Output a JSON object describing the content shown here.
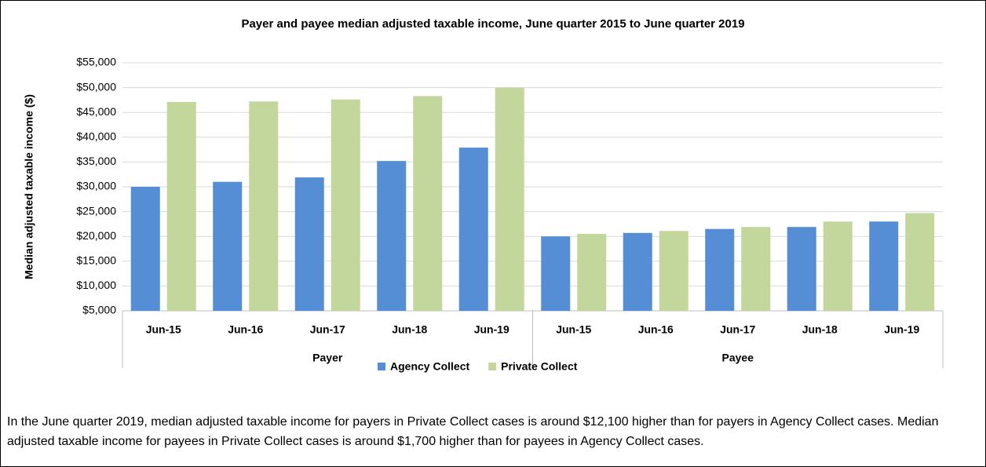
{
  "chart_data": {
    "type": "bar",
    "title": "Payer and payee median adjusted taxable income, June quarter 2015 to June quarter 2019",
    "y_label": "Median adjusted taxable income ($)",
    "groups": [
      {
        "name": "Payer",
        "categories": [
          "Jun-15",
          "Jun-16",
          "Jun-17",
          "Jun-18",
          "Jun-19"
        ]
      },
      {
        "name": "Payee",
        "categories": [
          "Jun-15",
          "Jun-16",
          "Jun-17",
          "Jun-18",
          "Jun-19"
        ]
      }
    ],
    "series": [
      {
        "name": "Agency Collect",
        "color": "#558ed5",
        "values": [
          30000,
          31000,
          31900,
          35200,
          37900,
          20000,
          20700,
          21500,
          21900,
          23000
        ]
      },
      {
        "name": "Private Collect",
        "color": "#c3d69b",
        "values": [
          47100,
          47200,
          47600,
          48300,
          50000,
          20500,
          21100,
          21900,
          23000,
          24700
        ]
      }
    ],
    "ylim": [
      5000,
      55000
    ],
    "yticks": [
      {
        "value": 5000,
        "label": "$5,000"
      },
      {
        "value": 10000,
        "label": "$10,000"
      },
      {
        "value": 15000,
        "label": "$15,000"
      },
      {
        "value": 20000,
        "label": "$20,000"
      },
      {
        "value": 25000,
        "label": "$25,000"
      },
      {
        "value": 30000,
        "label": "$30,000"
      },
      {
        "value": 35000,
        "label": "$35,000"
      },
      {
        "value": 40000,
        "label": "$40,000"
      },
      {
        "value": 45000,
        "label": "$45,000"
      },
      {
        "value": 50000,
        "label": "$50,000"
      },
      {
        "value": 55000,
        "label": "$55,000"
      }
    ],
    "grid": true,
    "legend": "bottom"
  },
  "note": "In the June quarter 2019, median adjusted taxable income for payers in Private Collect cases is around $12,100 higher than for payers in Agency Collect cases. Median adjusted taxable income for payees in Private Collect cases is around $1,700 higher than for payees in Agency Collect cases."
}
